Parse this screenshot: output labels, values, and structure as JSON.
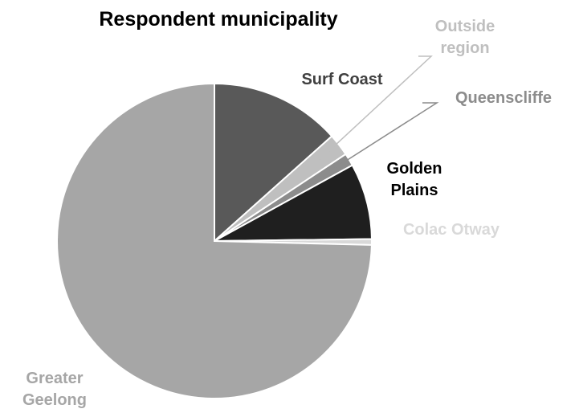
{
  "chart_data": {
    "type": "pie",
    "title": "Respondent municipality",
    "start_angle_deg": 0,
    "direction": "clockwise",
    "slices": [
      {
        "label": "Surf Coast",
        "label_lines": [
          "Surf Coast"
        ],
        "value": 13.4,
        "color": "#595959",
        "label_color": "#404040"
      },
      {
        "label": "Outside region",
        "label_lines": [
          "Outside",
          "region"
        ],
        "value": 2.3,
        "color": "#bfbfbf",
        "label_color": "#bfbfbf"
      },
      {
        "label": "Queenscliffe",
        "label_lines": [
          "Queenscliffe"
        ],
        "value": 1.3,
        "color": "#8c8c8c",
        "label_color": "#8c8c8c"
      },
      {
        "label": "Golden Plains",
        "label_lines": [
          "Golden",
          "Plains"
        ],
        "value": 7.8,
        "color": "#1f1f1f",
        "label_color": "#000000"
      },
      {
        "label": "Colac Otway",
        "label_lines": [
          "Colac Otway"
        ],
        "value": 0.6,
        "color": "#d9d9d9",
        "label_color": "#d9d9d9"
      },
      {
        "label": "Greater Geelong",
        "label_lines": [
          "Greater",
          "Geelong"
        ],
        "value": 74.6,
        "color": "#a6a6a6",
        "label_color": "#a6a6a6"
      }
    ],
    "legend": "none"
  }
}
